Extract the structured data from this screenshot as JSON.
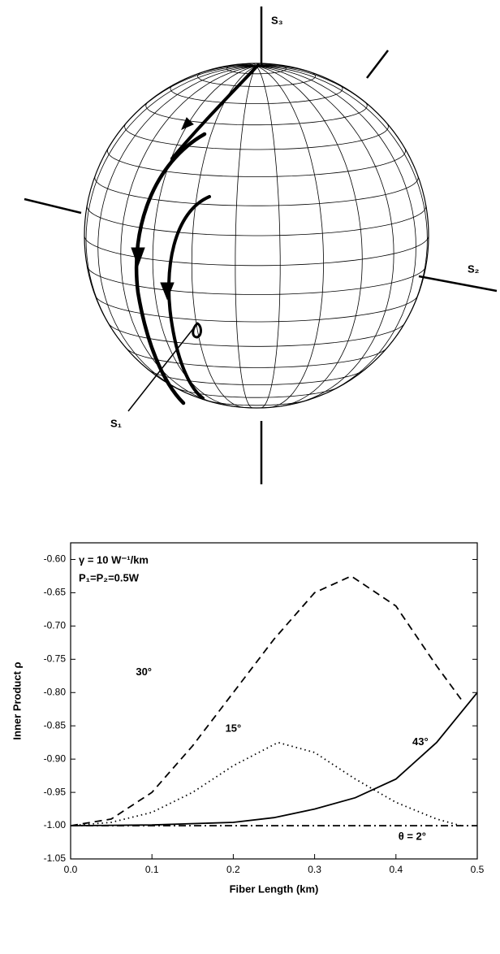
{
  "sphere": {
    "s1": "S₁",
    "s2": "S₂",
    "s3": "S₃"
  },
  "chart_data": {
    "type": "line",
    "xlabel": "Fiber Length (km)",
    "ylabel": "Inner Product ρ",
    "annotations": [
      "γ = 10 W⁻¹/km",
      "P₁=P₂=0.5W"
    ],
    "xlim": [
      0,
      0.5
    ],
    "ylim": [
      -1.05,
      -0.575
    ],
    "xticks": [
      {
        "value": 0,
        "label": "0.0"
      },
      0.1,
      0.2,
      0.3,
      0.4,
      0.5
    ],
    "yticks": [
      {
        "value": -0.6,
        "label": "-0.60"
      },
      -0.65,
      {
        "value": -0.7,
        "label": "-0.70"
      },
      -0.75,
      {
        "value": -0.8,
        "label": "-0.80"
      },
      -0.85,
      {
        "value": -0.9,
        "label": "-0.90"
      },
      -0.95,
      {
        "value": -1.0,
        "label": "-1.00"
      },
      -1.05
    ],
    "series": [
      {
        "name": "30°",
        "color": "#000",
        "dash": "dashed",
        "x": [
          0,
          0.05,
          0.1,
          0.15,
          0.2,
          0.25,
          0.3,
          0.345,
          0.4,
          0.45,
          0.48
        ],
        "values": [
          -1.0,
          -0.99,
          -0.95,
          -0.88,
          -0.8,
          -0.72,
          -0.65,
          -0.625,
          -0.67,
          -0.76,
          -0.81
        ]
      },
      {
        "name": "15°",
        "color": "#000",
        "dash": "dotted",
        "x": [
          0,
          0.05,
          0.1,
          0.15,
          0.2,
          0.255,
          0.3,
          0.35,
          0.4,
          0.45,
          0.48
        ],
        "values": [
          -1.0,
          -0.995,
          -0.98,
          -0.95,
          -0.91,
          -0.875,
          -0.89,
          -0.93,
          -0.965,
          -0.99,
          -1.0
        ]
      },
      {
        "name": "43°",
        "color": "#000",
        "dash": "solid",
        "x": [
          0,
          0.1,
          0.2,
          0.25,
          0.3,
          0.35,
          0.4,
          0.45,
          0.5
        ],
        "values": [
          -1.0,
          -0.999,
          -0.995,
          -0.988,
          -0.975,
          -0.958,
          -0.93,
          -0.875,
          -0.8
        ]
      },
      {
        "name": "θ = 2°",
        "color": "#000",
        "dash": "dashdot",
        "x": [
          0,
          0.5
        ],
        "values": [
          -1.0,
          -1.0
        ]
      }
    ]
  }
}
